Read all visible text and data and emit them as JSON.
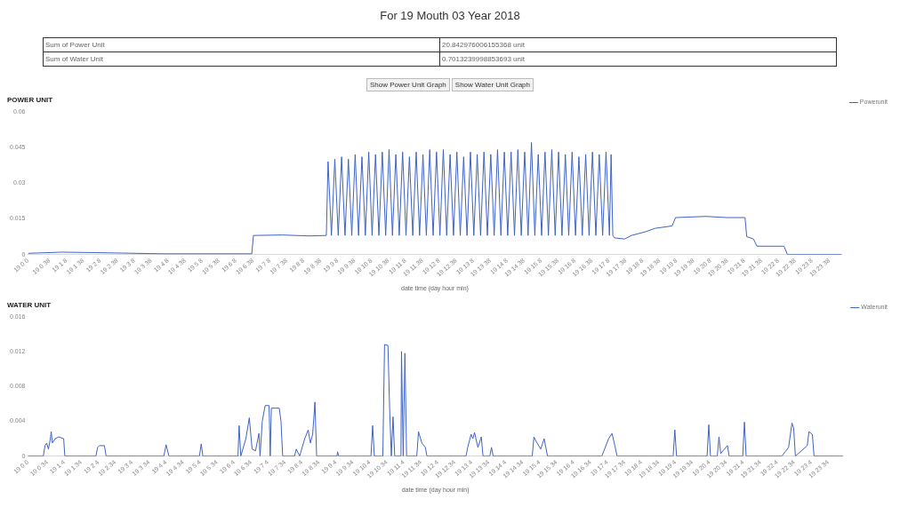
{
  "chart_data": [
    {
      "type": "other",
      "title": "For 19 Mouth 03 Year 2018",
      "annotations": [
        "Sum of Power Unit",
        "20.842976006155368 unit",
        "Sum of Water Unit",
        "0.7013239998853693 unit",
        "Show Power Unit Graph",
        "Show Water Unit Graph"
      ]
    },
    {
      "type": "line",
      "title": "POWER UNIT",
      "xlabel": "date time (day hour min)",
      "xlim": [
        "2018-03-19T00:00",
        "2018-03-20T00:00"
      ],
      "ylim": [
        0,
        0.06
      ],
      "yticks": [
        0,
        0.015,
        0.03,
        0.045,
        0.06
      ],
      "legend": "top right",
      "marker": "none",
      "line_style": "solid",
      "xticks": [
        {
          "value": "2018-03-19T00:00",
          "label": "19 0 0"
        },
        {
          "value": "2018-03-19T00:38",
          "label": "19 0 38"
        },
        {
          "value": "2018-03-19T01:08",
          "label": "19 1 8"
        },
        {
          "value": "2018-03-19T01:38",
          "label": "19 1 38"
        },
        {
          "value": "2018-03-19T02:08",
          "label": "19 2 8"
        },
        {
          "value": "2018-03-19T02:38",
          "label": "19 2 38"
        },
        {
          "value": "2018-03-19T03:08",
          "label": "19 3 8"
        },
        {
          "value": "2018-03-19T03:38",
          "label": "19 3 38"
        },
        {
          "value": "2018-03-19T04:08",
          "label": "19 4 8"
        },
        {
          "value": "2018-03-19T04:38",
          "label": "19 4 38"
        },
        {
          "value": "2018-03-19T05:08",
          "label": "19 5 8"
        },
        {
          "value": "2018-03-19T05:38",
          "label": "19 5 38"
        },
        {
          "value": "2018-03-19T06:08",
          "label": "19 6 8"
        },
        {
          "value": "2018-03-19T06:38",
          "label": "19 6 38"
        },
        {
          "value": "2018-03-19T07:08",
          "label": "19 7 8"
        },
        {
          "value": "2018-03-19T07:38",
          "label": "19 7 38"
        },
        {
          "value": "2018-03-19T08:08",
          "label": "19 8 8"
        },
        {
          "value": "2018-03-19T08:38",
          "label": "19 8 38"
        },
        {
          "value": "2018-03-19T09:08",
          "label": "19 9 8"
        },
        {
          "value": "2018-03-19T09:38",
          "label": "19 9 38"
        },
        {
          "value": "2018-03-19T10:08",
          "label": "19 10 8"
        },
        {
          "value": "2018-03-19T10:38",
          "label": "19 10 38"
        },
        {
          "value": "2018-03-19T11:08",
          "label": "19 11 8"
        },
        {
          "value": "2018-03-19T11:38",
          "label": "19 11 38"
        },
        {
          "value": "2018-03-19T12:08",
          "label": "19 12 8"
        },
        {
          "value": "2018-03-19T12:38",
          "label": "19 12 38"
        },
        {
          "value": "2018-03-19T13:08",
          "label": "19 13 8"
        },
        {
          "value": "2018-03-19T13:38",
          "label": "19 13 38"
        },
        {
          "value": "2018-03-19T14:08",
          "label": "19 14 8"
        },
        {
          "value": "2018-03-19T14:38",
          "label": "19 14 38"
        },
        {
          "value": "2018-03-19T15:08",
          "label": "19 15 8"
        },
        {
          "value": "2018-03-19T15:38",
          "label": "19 15 38"
        },
        {
          "value": "2018-03-19T16:08",
          "label": "19 16 8"
        },
        {
          "value": "2018-03-19T16:38",
          "label": "19 16 38"
        },
        {
          "value": "2018-03-19T17:08",
          "label": "19 17 8"
        },
        {
          "value": "2018-03-19T17:38",
          "label": "19 17 38"
        },
        {
          "value": "2018-03-19T18:08",
          "label": "19 18 8"
        },
        {
          "value": "2018-03-19T18:38",
          "label": "19 18 38"
        },
        {
          "value": "2018-03-19T19:08",
          "label": "19 19 8"
        },
        {
          "value": "2018-03-19T19:38",
          "label": "19 19 38"
        },
        {
          "value": "2018-03-19T20:08",
          "label": "19 20 8"
        },
        {
          "value": "2018-03-19T20:38",
          "label": "19 20 38"
        },
        {
          "value": "2018-03-19T21:08",
          "label": "19 21 8"
        },
        {
          "value": "2018-03-19T21:38",
          "label": "19 21 38"
        },
        {
          "value": "2018-03-19T22:08",
          "label": "19 22 8"
        },
        {
          "value": "2018-03-19T22:38",
          "label": "19 22 38"
        },
        {
          "value": "2018-03-19T23:08",
          "label": "19 23 8"
        },
        {
          "value": "2018-03-19T23:38",
          "label": "19 23 38"
        }
      ],
      "series": [
        {
          "name": "Powerunit",
          "color": "#3f63c4",
          "x": [
            "2018-03-19T00:00",
            "2018-03-19T01:00",
            "2018-03-19T02:00",
            "2018-03-19T04:00",
            "2018-03-19T06:36",
            "2018-03-19T06:39",
            "2018-03-19T07:30",
            "2018-03-19T08:18",
            "2018-03-19T08:48",
            "2018-03-19T08:51",
            "2018-03-19T08:57",
            "2018-03-19T09:03",
            "2018-03-19T09:09",
            "2018-03-19T09:15",
            "2018-03-19T09:21",
            "2018-03-19T09:27",
            "2018-03-19T09:33",
            "2018-03-19T09:39",
            "2018-03-19T09:45",
            "2018-03-19T09:51",
            "2018-03-19T09:57",
            "2018-03-19T10:03",
            "2018-03-19T10:09",
            "2018-03-19T10:15",
            "2018-03-19T10:21",
            "2018-03-19T10:27",
            "2018-03-19T10:33",
            "2018-03-19T10:39",
            "2018-03-19T10:45",
            "2018-03-19T10:51",
            "2018-03-19T10:57",
            "2018-03-19T11:03",
            "2018-03-19T11:09",
            "2018-03-19T11:15",
            "2018-03-19T11:21",
            "2018-03-19T11:27",
            "2018-03-19T11:33",
            "2018-03-19T11:39",
            "2018-03-19T11:45",
            "2018-03-19T11:51",
            "2018-03-19T11:57",
            "2018-03-19T12:03",
            "2018-03-19T12:09",
            "2018-03-19T12:15",
            "2018-03-19T12:21",
            "2018-03-19T12:27",
            "2018-03-19T12:33",
            "2018-03-19T12:39",
            "2018-03-19T12:45",
            "2018-03-19T12:51",
            "2018-03-19T12:57",
            "2018-03-19T13:03",
            "2018-03-19T13:09",
            "2018-03-19T13:15",
            "2018-03-19T13:21",
            "2018-03-19T13:27",
            "2018-03-19T13:33",
            "2018-03-19T13:39",
            "2018-03-19T13:45",
            "2018-03-19T13:51",
            "2018-03-19T13:57",
            "2018-03-19T14:03",
            "2018-03-19T14:09",
            "2018-03-19T14:15",
            "2018-03-19T14:21",
            "2018-03-19T14:27",
            "2018-03-19T14:33",
            "2018-03-19T14:39",
            "2018-03-19T14:45",
            "2018-03-19T14:51",
            "2018-03-19T14:57",
            "2018-03-19T15:03",
            "2018-03-19T15:09",
            "2018-03-19T15:15",
            "2018-03-19T15:21",
            "2018-03-19T15:27",
            "2018-03-19T15:33",
            "2018-03-19T15:39",
            "2018-03-19T15:45",
            "2018-03-19T15:51",
            "2018-03-19T15:57",
            "2018-03-19T16:03",
            "2018-03-19T16:09",
            "2018-03-19T16:15",
            "2018-03-19T16:21",
            "2018-03-19T16:27",
            "2018-03-19T16:33",
            "2018-03-19T16:39",
            "2018-03-19T16:45",
            "2018-03-19T16:51",
            "2018-03-19T16:57",
            "2018-03-19T17:03",
            "2018-03-19T17:09",
            "2018-03-19T17:12",
            "2018-03-19T17:15",
            "2018-03-19T17:18",
            "2018-03-19T17:36",
            "2018-03-19T17:48",
            "2018-03-19T18:12",
            "2018-03-19T18:30",
            "2018-03-19T19:00",
            "2018-03-19T19:06",
            "2018-03-19T20:00",
            "2018-03-19T20:36",
            "2018-03-19T21:09",
            "2018-03-19T21:12",
            "2018-03-19T21:24",
            "2018-03-19T21:30",
            "2018-03-19T22:18",
            "2018-03-19T22:24",
            "2018-03-20T00:00"
          ],
          "values": [
            0.0005,
            0.001,
            0.0008,
            0.0003,
            0.0003,
            0.008,
            0.0082,
            0.0078,
            0.008,
            0.039,
            0.008,
            0.04,
            0.008,
            0.041,
            0.008,
            0.04,
            0.008,
            0.042,
            0.008,
            0.041,
            0.008,
            0.043,
            0.008,
            0.042,
            0.008,
            0.043,
            0.008,
            0.044,
            0.008,
            0.042,
            0.008,
            0.043,
            0.008,
            0.041,
            0.008,
            0.043,
            0.008,
            0.042,
            0.008,
            0.044,
            0.008,
            0.043,
            0.008,
            0.044,
            0.008,
            0.042,
            0.008,
            0.043,
            0.008,
            0.041,
            0.008,
            0.043,
            0.008,
            0.042,
            0.008,
            0.043,
            0.008,
            0.042,
            0.008,
            0.044,
            0.008,
            0.043,
            0.008,
            0.043,
            0.008,
            0.044,
            0.008,
            0.043,
            0.008,
            0.047,
            0.008,
            0.042,
            0.008,
            0.043,
            0.008,
            0.044,
            0.008,
            0.043,
            0.008,
            0.042,
            0.008,
            0.043,
            0.008,
            0.041,
            0.008,
            0.042,
            0.008,
            0.043,
            0.008,
            0.042,
            0.008,
            0.043,
            0.008,
            0.042,
            0.008,
            0.007,
            0.0065,
            0.008,
            0.0095,
            0.011,
            0.012,
            0.0155,
            0.016,
            0.0155,
            0.0155,
            0.0075,
            0.0065,
            0.0035,
            0.0035,
            0,
            0
          ]
        }
      ]
    },
    {
      "type": "line",
      "title": "WATER UNIT",
      "xlabel": "date time (day hour min)",
      "xlim": [
        "2018-03-19T00:00",
        "2018-03-20T00:00"
      ],
      "ylim": [
        0,
        0.016
      ],
      "yticks": [
        0,
        0.004,
        0.008,
        0.012,
        0.016
      ],
      "legend": "top right",
      "marker": "none",
      "line_style": "solid",
      "xticks": [
        {
          "value": "2018-03-19T00:00",
          "label": "19 0 0"
        },
        {
          "value": "2018-03-19T00:34",
          "label": "19 0 34"
        },
        {
          "value": "2018-03-19T01:04",
          "label": "19 1 4"
        },
        {
          "value": "2018-03-19T01:34",
          "label": "19 1 34"
        },
        {
          "value": "2018-03-19T02:04",
          "label": "19 2 4"
        },
        {
          "value": "2018-03-19T02:34",
          "label": "19 2 34"
        },
        {
          "value": "2018-03-19T03:04",
          "label": "19 3 4"
        },
        {
          "value": "2018-03-19T03:34",
          "label": "19 3 34"
        },
        {
          "value": "2018-03-19T04:04",
          "label": "19 4 4"
        },
        {
          "value": "2018-03-19T04:34",
          "label": "19 4 34"
        },
        {
          "value": "2018-03-19T05:04",
          "label": "19 5 4"
        },
        {
          "value": "2018-03-19T05:34",
          "label": "19 5 34"
        },
        {
          "value": "2018-03-19T06:04",
          "label": "19 6 4"
        },
        {
          "value": "2018-03-19T06:34",
          "label": "19 6 34"
        },
        {
          "value": "2018-03-19T07:04",
          "label": "19 7 4"
        },
        {
          "value": "2018-03-19T07:34",
          "label": "19 7 34"
        },
        {
          "value": "2018-03-19T08:04",
          "label": "19 8 4"
        },
        {
          "value": "2018-03-19T08:34",
          "label": "19 8 34"
        },
        {
          "value": "2018-03-19T09:04",
          "label": "19 9 4"
        },
        {
          "value": "2018-03-19T09:34",
          "label": "19 9 34"
        },
        {
          "value": "2018-03-19T10:04",
          "label": "19 10 4"
        },
        {
          "value": "2018-03-19T10:34",
          "label": "19 10 34"
        },
        {
          "value": "2018-03-19T11:04",
          "label": "19 11 4"
        },
        {
          "value": "2018-03-19T11:34",
          "label": "19 11 34"
        },
        {
          "value": "2018-03-19T12:04",
          "label": "19 12 4"
        },
        {
          "value": "2018-03-19T12:34",
          "label": "19 12 34"
        },
        {
          "value": "2018-03-19T13:04",
          "label": "19 13 4"
        },
        {
          "value": "2018-03-19T13:34",
          "label": "19 13 34"
        },
        {
          "value": "2018-03-19T14:04",
          "label": "19 14 4"
        },
        {
          "value": "2018-03-19T14:34",
          "label": "19 14 34"
        },
        {
          "value": "2018-03-19T15:04",
          "label": "19 15 4"
        },
        {
          "value": "2018-03-19T15:34",
          "label": "19 15 34"
        },
        {
          "value": "2018-03-19T16:04",
          "label": "19 16 4"
        },
        {
          "value": "2018-03-19T16:34",
          "label": "19 16 34"
        },
        {
          "value": "2018-03-19T17:04",
          "label": "19 17 4"
        },
        {
          "value": "2018-03-19T17:34",
          "label": "19 17 34"
        },
        {
          "value": "2018-03-19T18:04",
          "label": "19 18 4"
        },
        {
          "value": "2018-03-19T18:34",
          "label": "19 18 34"
        },
        {
          "value": "2018-03-19T19:04",
          "label": "19 19 4"
        },
        {
          "value": "2018-03-19T19:34",
          "label": "19 19 34"
        },
        {
          "value": "2018-03-19T20:04",
          "label": "19 20 4"
        },
        {
          "value": "2018-03-19T20:34",
          "label": "19 20 34"
        },
        {
          "value": "2018-03-19T21:04",
          "label": "19 21 4"
        },
        {
          "value": "2018-03-19T21:34",
          "label": "19 21 34"
        },
        {
          "value": "2018-03-19T22:04",
          "label": "19 22 4"
        },
        {
          "value": "2018-03-19T22:34",
          "label": "19 22 34"
        },
        {
          "value": "2018-03-19T23:04",
          "label": "19 23 4"
        },
        {
          "value": "2018-03-19T23:34",
          "label": "19 23 34"
        }
      ],
      "series": [
        {
          "name": "Waterunit",
          "color": "#3f63c4",
          "x": [
            "2018-03-19T00:00",
            "2018-03-19T00:27",
            "2018-03-19T00:30",
            "2018-03-19T00:33",
            "2018-03-19T00:36",
            "2018-03-19T00:39",
            "2018-03-19T00:41",
            "2018-03-19T00:43",
            "2018-03-19T00:48",
            "2018-03-19T00:54",
            "2018-03-19T01:03",
            "2018-03-19T01:05",
            "2018-03-19T02:00",
            "2018-03-19T02:03",
            "2018-03-19T02:06",
            "2018-03-19T02:15",
            "2018-03-19T02:18",
            "2018-03-19T04:00",
            "2018-03-19T04:04",
            "2018-03-19T04:09",
            "2018-03-19T05:03",
            "2018-03-19T05:06",
            "2018-03-19T05:09",
            "2018-03-19T06:11",
            "2018-03-19T06:13",
            "2018-03-19T06:16",
            "2018-03-19T06:25",
            "2018-03-19T06:31",
            "2018-03-19T06:36",
            "2018-03-19T06:42",
            "2018-03-19T06:48",
            "2018-03-19T06:50",
            "2018-03-19T06:54",
            "2018-03-19T06:59",
            "2018-03-19T07:06",
            "2018-03-19T07:08",
            "2018-03-19T07:10",
            "2018-03-19T07:24",
            "2018-03-19T07:27",
            "2018-03-19T07:30",
            "2018-03-19T07:51",
            "2018-03-19T07:54",
            "2018-03-19T08:00",
            "2018-03-19T08:09",
            "2018-03-19T08:15",
            "2018-03-19T08:19",
            "2018-03-19T08:23",
            "2018-03-19T08:27",
            "2018-03-19T08:30",
            "2018-03-19T09:06",
            "2018-03-19T09:07",
            "2018-03-19T09:09",
            "2018-03-19T10:06",
            "2018-03-19T10:09",
            "2018-03-19T10:12",
            "2018-03-19T10:27",
            "2018-03-19T10:30",
            "2018-03-19T10:36",
            "2018-03-19T10:39",
            "2018-03-19T10:42",
            "2018-03-19T10:45",
            "2018-03-19T10:48",
            "2018-03-19T10:59",
            "2018-03-19T11:00",
            "2018-03-19T11:03",
            "2018-03-19T11:06",
            "2018-03-19T11:09",
            "2018-03-19T11:27",
            "2018-03-19T11:30",
            "2018-03-19T11:36",
            "2018-03-19T11:42",
            "2018-03-19T11:45",
            "2018-03-19T12:54",
            "2018-03-19T12:57",
            "2018-03-19T13:03",
            "2018-03-19T13:06",
            "2018-03-19T13:09",
            "2018-03-19T13:15",
            "2018-03-19T13:21",
            "2018-03-19T13:24",
            "2018-03-19T13:36",
            "2018-03-19T13:39",
            "2018-03-19T13:42",
            "2018-03-19T14:51",
            "2018-03-19T14:54",
            "2018-03-19T14:57",
            "2018-03-19T15:06",
            "2018-03-19T15:12",
            "2018-03-19T15:18",
            "2018-03-19T16:54",
            "2018-03-19T17:06",
            "2018-03-19T17:12",
            "2018-03-19T17:17",
            "2018-03-19T17:21",
            "2018-03-19T19:00",
            "2018-03-19T19:03",
            "2018-03-19T19:06",
            "2018-03-19T20:00",
            "2018-03-19T20:03",
            "2018-03-19T20:06",
            "2018-03-19T20:18",
            "2018-03-19T20:21",
            "2018-03-19T20:24",
            "2018-03-19T20:36",
            "2018-03-19T20:39",
            "2018-03-19T21:03",
            "2018-03-19T21:06",
            "2018-03-19T21:09",
            "2018-03-19T22:12",
            "2018-03-19T22:24",
            "2018-03-19T22:30",
            "2018-03-19T22:33",
            "2018-03-19T22:36",
            "2018-03-19T22:57",
            "2018-03-19T23:00",
            "2018-03-19T23:06",
            "2018-03-19T23:09",
            "2018-03-20T00:00"
          ],
          "values": [
            0,
            0,
            0.0012,
            0.0015,
            0.0008,
            0.0018,
            0.0028,
            0.0015,
            0.002,
            0.0022,
            0.002,
            0,
            0,
            0.001,
            0.0012,
            0.0012,
            0,
            0,
            0.0013,
            0,
            0,
            0.0014,
            0,
            0,
            0.0035,
            0,
            0.002,
            0.0044,
            0.0008,
            0.0006,
            0.0026,
            0,
            0.004,
            0.0058,
            0.0058,
            0,
            0.0055,
            0.0055,
            0.004,
            0,
            0,
            0.0008,
            0,
            0.002,
            0.003,
            0.0015,
            0.0025,
            0.0062,
            0,
            0,
            0.0005,
            0,
            0,
            0.0035,
            0,
            0,
            0.0128,
            0.0127,
            0.0055,
            0,
            0.0045,
            0,
            0,
            0.012,
            0,
            0.0118,
            0,
            0,
            0.0028,
            0.0015,
            0.001,
            0,
            0,
            0.001,
            0.0025,
            0.002,
            0.0027,
            0.001,
            0.0022,
            0,
            0,
            0.001,
            0,
            0,
            0.0022,
            0.0018,
            0.0008,
            0.002,
            0,
            0,
            0.002,
            0.0026,
            0.0012,
            0,
            0,
            0.003,
            0,
            0,
            0.0036,
            0,
            0,
            0.0022,
            0.0003,
            0.0012,
            0,
            0,
            0.0039,
            0,
            0,
            0.001,
            0.0038,
            0.0032,
            0,
            0.0012,
            0.0028,
            0.0025,
            0,
            0
          ]
        }
      ]
    }
  ]
}
